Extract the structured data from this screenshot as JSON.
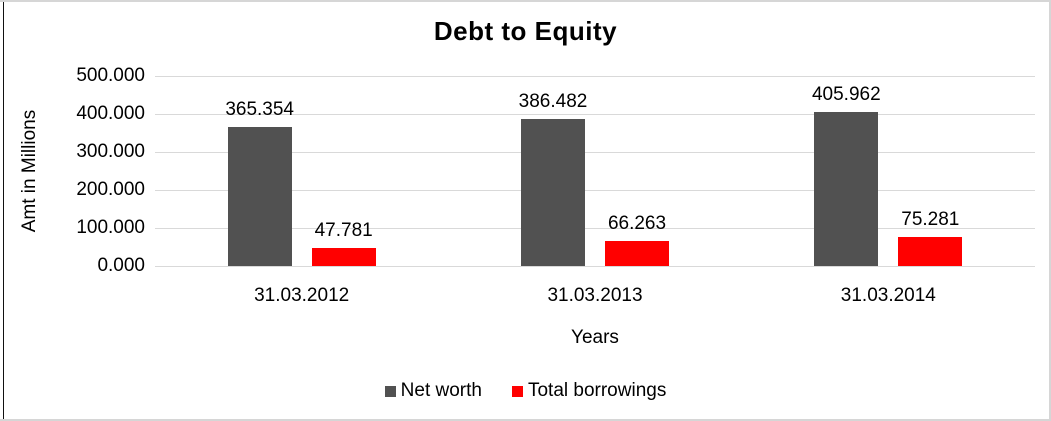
{
  "chart_data": {
    "type": "bar",
    "title": "Debt to Equity",
    "xlabel": "Years",
    "ylabel": "Amt in Millions",
    "categories": [
      "31.03.2012",
      "31.03.2013",
      "31.03.2014"
    ],
    "series": [
      {
        "name": "Net worth",
        "color": "#515151",
        "values": [
          365.354,
          386.482,
          405.962
        ],
        "value_labels": [
          "365.354",
          "386.482",
          "405.962"
        ]
      },
      {
        "name": "Total borrowings",
        "color": "#FF0000",
        "values": [
          47.781,
          66.263,
          75.281
        ],
        "value_labels": [
          "47.781",
          "66.263",
          "75.281"
        ]
      }
    ],
    "ylim": [
      0,
      500
    ],
    "ytick_step": 100,
    "ytick_labels_bottom_up": [
      "0.000",
      "100.000",
      "200.000",
      "300.000",
      "400.000",
      "500.000"
    ],
    "grid": true,
    "gridline_color": "#D9D9D9",
    "legend_position": "bottom"
  }
}
